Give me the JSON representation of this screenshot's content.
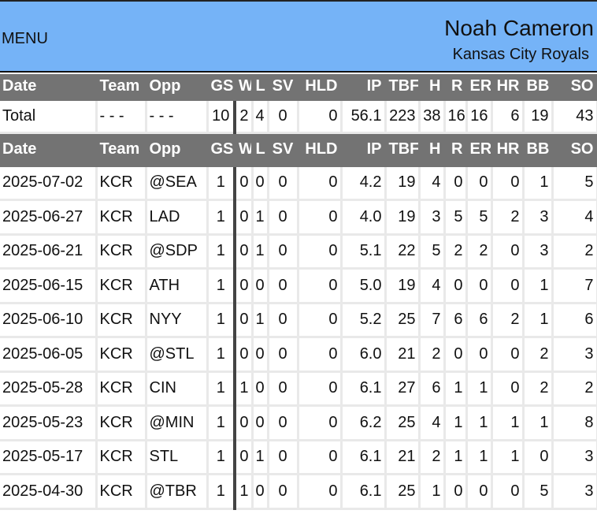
{
  "header": {
    "menu_label": "MENU",
    "player_name": "Noah Cameron",
    "team_name": "Kansas City Royals"
  },
  "columns": [
    "Date",
    "Team",
    "Opp",
    "GS",
    "W",
    "L",
    "SV",
    "HLD",
    "IP",
    "TBF",
    "H",
    "R",
    "ER",
    "HR",
    "BB",
    "SO"
  ],
  "total": [
    "Total",
    "- - -",
    "- - -",
    "10",
    "2",
    "4",
    "0",
    "0",
    "56.1",
    "223",
    "38",
    "16",
    "16",
    "6",
    "19",
    "43"
  ],
  "games": [
    [
      "2025-07-02",
      "KCR",
      "@SEA",
      "1",
      "0",
      "0",
      "0",
      "0",
      "4.2",
      "19",
      "4",
      "0",
      "0",
      "0",
      "1",
      "5"
    ],
    [
      "2025-06-27",
      "KCR",
      "LAD",
      "1",
      "0",
      "1",
      "0",
      "0",
      "4.0",
      "19",
      "3",
      "5",
      "5",
      "2",
      "3",
      "4"
    ],
    [
      "2025-06-21",
      "KCR",
      "@SDP",
      "1",
      "0",
      "1",
      "0",
      "0",
      "5.1",
      "22",
      "5",
      "2",
      "2",
      "0",
      "3",
      "2"
    ],
    [
      "2025-06-15",
      "KCR",
      "ATH",
      "1",
      "0",
      "0",
      "0",
      "0",
      "5.0",
      "19",
      "4",
      "0",
      "0",
      "0",
      "1",
      "7"
    ],
    [
      "2025-06-10",
      "KCR",
      "NYY",
      "1",
      "0",
      "1",
      "0",
      "0",
      "5.2",
      "25",
      "7",
      "6",
      "6",
      "2",
      "1",
      "6"
    ],
    [
      "2025-06-05",
      "KCR",
      "@STL",
      "1",
      "0",
      "0",
      "0",
      "0",
      "6.0",
      "21",
      "2",
      "0",
      "0",
      "0",
      "2",
      "3"
    ],
    [
      "2025-05-28",
      "KCR",
      "CIN",
      "1",
      "1",
      "0",
      "0",
      "0",
      "6.1",
      "27",
      "6",
      "1",
      "1",
      "0",
      "2",
      "2"
    ],
    [
      "2025-05-23",
      "KCR",
      "@MIN",
      "1",
      "0",
      "0",
      "0",
      "0",
      "6.2",
      "25",
      "4",
      "1",
      "1",
      "1",
      "1",
      "8"
    ],
    [
      "2025-05-17",
      "KCR",
      "STL",
      "1",
      "0",
      "1",
      "0",
      "0",
      "6.1",
      "21",
      "2",
      "1",
      "1",
      "1",
      "0",
      "3"
    ],
    [
      "2025-04-30",
      "KCR",
      "@TBR",
      "1",
      "1",
      "0",
      "0",
      "0",
      "6.1",
      "25",
      "1",
      "0",
      "0",
      "0",
      "5",
      "3"
    ]
  ],
  "colors": {
    "header_bg": "#75b3f7",
    "table_header_bg": "#737373",
    "grid": "#e9e9e9"
  }
}
